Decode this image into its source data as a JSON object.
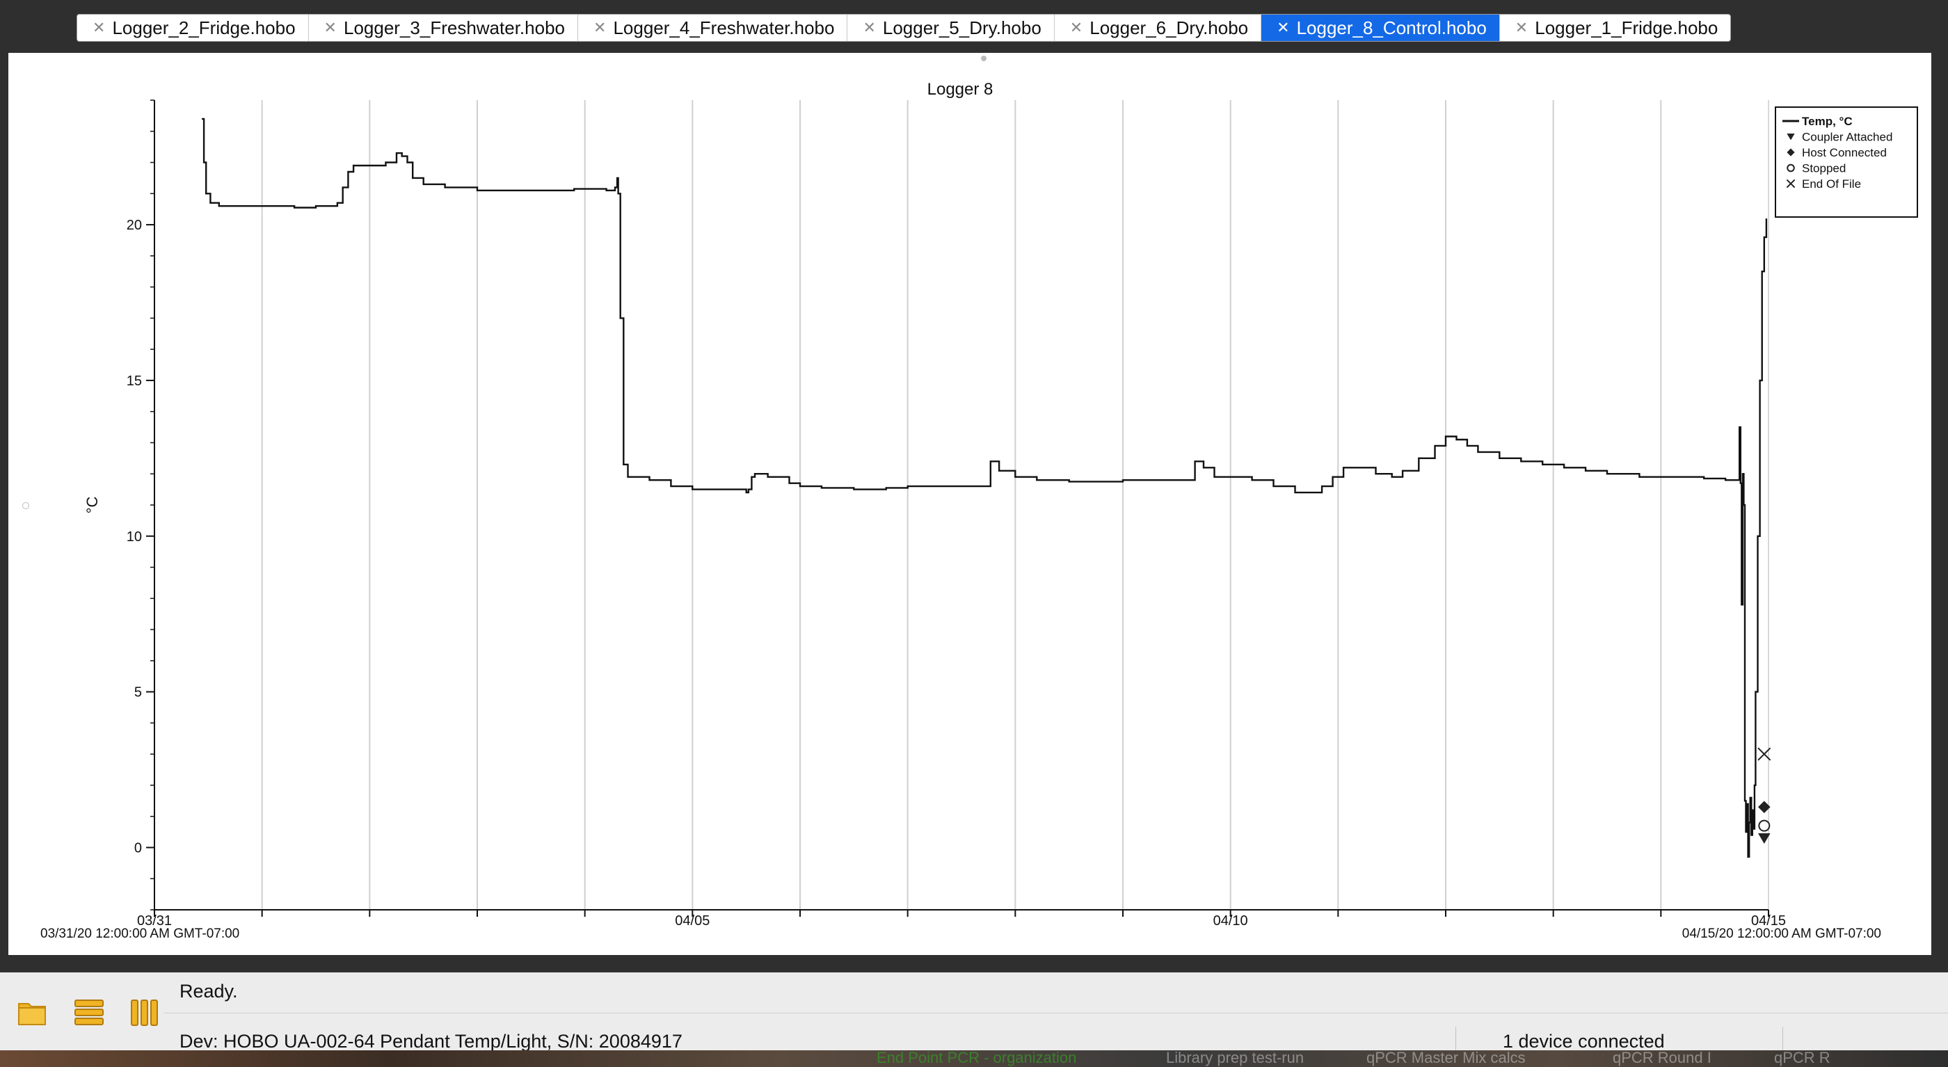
{
  "tabs": [
    {
      "label": "Logger_2_Fridge.hobo",
      "active": false
    },
    {
      "label": "Logger_3_Freshwater.hobo",
      "active": false
    },
    {
      "label": "Logger_4_Freshwater.hobo",
      "active": false
    },
    {
      "label": "Logger_5_Dry.hobo",
      "active": false
    },
    {
      "label": "Logger_6_Dry.hobo",
      "active": false
    },
    {
      "label": "Logger_8_Control.hobo",
      "active": true
    },
    {
      "label": "Logger_1_Fridge.hobo",
      "active": false
    }
  ],
  "chart_data": {
    "type": "line",
    "title": "Logger 8",
    "ylabel": "°C",
    "xlabel": "",
    "x_unit": "days since 03/31/20 00:00",
    "xlim": [
      0,
      15
    ],
    "ylim": [
      -2,
      24
    ],
    "x_ticks": [
      {
        "x": 0,
        "label": "03/31"
      },
      {
        "x": 5,
        "label": "04/05"
      },
      {
        "x": 10,
        "label": "04/10"
      },
      {
        "x": 15,
        "label": "04/15"
      }
    ],
    "x_range_start_label": "03/31/20 12:00:00 AM GMT-07:00",
    "x_range_end_label": "04/15/20 12:00:00 AM GMT-07:00",
    "y_ticks": [
      0,
      5,
      10,
      15,
      20
    ],
    "grid": "vertical, daily",
    "legend_position": "top-right",
    "legend": [
      {
        "symbol": "line",
        "label": "Temp, °C"
      },
      {
        "symbol": "triangle-down",
        "label": "Coupler Attached"
      },
      {
        "symbol": "diamond",
        "label": "Host Connected"
      },
      {
        "symbol": "circle",
        "label": "Stopped"
      },
      {
        "symbol": "x",
        "label": "End Of File"
      }
    ],
    "series": [
      {
        "name": "Temp, °C",
        "points": [
          [
            0.44,
            23.4
          ],
          [
            0.46,
            22.0
          ],
          [
            0.48,
            21.0
          ],
          [
            0.52,
            20.7
          ],
          [
            0.6,
            20.6
          ],
          [
            0.8,
            20.6
          ],
          [
            1.0,
            20.6
          ],
          [
            1.2,
            20.6
          ],
          [
            1.3,
            20.55
          ],
          [
            1.5,
            20.6
          ],
          [
            1.7,
            20.7
          ],
          [
            1.75,
            21.2
          ],
          [
            1.8,
            21.7
          ],
          [
            1.85,
            21.9
          ],
          [
            2.0,
            21.9
          ],
          [
            2.15,
            22.0
          ],
          [
            2.25,
            22.3
          ],
          [
            2.3,
            22.2
          ],
          [
            2.35,
            22.0
          ],
          [
            2.4,
            21.5
          ],
          [
            2.5,
            21.3
          ],
          [
            2.7,
            21.2
          ],
          [
            2.9,
            21.2
          ],
          [
            3.0,
            21.1
          ],
          [
            3.3,
            21.1
          ],
          [
            3.6,
            21.1
          ],
          [
            3.9,
            21.15
          ],
          [
            4.2,
            21.1
          ],
          [
            4.28,
            21.2
          ],
          [
            4.3,
            21.5
          ],
          [
            4.31,
            21.0
          ],
          [
            4.33,
            17.0
          ],
          [
            4.36,
            12.3
          ],
          [
            4.4,
            11.9
          ],
          [
            4.6,
            11.8
          ],
          [
            4.8,
            11.6
          ],
          [
            5.0,
            11.5
          ],
          [
            5.4,
            11.5
          ],
          [
            5.5,
            11.4
          ],
          [
            5.52,
            11.5
          ],
          [
            5.55,
            11.9
          ],
          [
            5.58,
            12.0
          ],
          [
            5.7,
            11.9
          ],
          [
            5.9,
            11.7
          ],
          [
            6.0,
            11.6
          ],
          [
            6.2,
            11.55
          ],
          [
            6.5,
            11.5
          ],
          [
            6.8,
            11.55
          ],
          [
            7.0,
            11.6
          ],
          [
            7.3,
            11.6
          ],
          [
            7.5,
            11.6
          ],
          [
            7.75,
            11.6
          ],
          [
            7.77,
            12.4
          ],
          [
            7.85,
            12.1
          ],
          [
            8.0,
            11.9
          ],
          [
            8.2,
            11.8
          ],
          [
            8.5,
            11.75
          ],
          [
            8.8,
            11.75
          ],
          [
            9.0,
            11.8
          ],
          [
            9.2,
            11.8
          ],
          [
            9.5,
            11.8
          ],
          [
            9.65,
            11.8
          ],
          [
            9.67,
            12.4
          ],
          [
            9.75,
            12.2
          ],
          [
            9.85,
            11.9
          ],
          [
            10.0,
            11.9
          ],
          [
            10.2,
            11.8
          ],
          [
            10.4,
            11.6
          ],
          [
            10.6,
            11.4
          ],
          [
            10.75,
            11.4
          ],
          [
            10.85,
            11.6
          ],
          [
            10.95,
            11.9
          ],
          [
            11.05,
            12.2
          ],
          [
            11.2,
            12.2
          ],
          [
            11.35,
            12.0
          ],
          [
            11.5,
            11.9
          ],
          [
            11.6,
            12.1
          ],
          [
            11.75,
            12.5
          ],
          [
            11.9,
            12.9
          ],
          [
            12.0,
            13.2
          ],
          [
            12.1,
            13.1
          ],
          [
            12.2,
            12.9
          ],
          [
            12.3,
            12.7
          ],
          [
            12.5,
            12.5
          ],
          [
            12.7,
            12.4
          ],
          [
            12.9,
            12.3
          ],
          [
            13.1,
            12.2
          ],
          [
            13.3,
            12.1
          ],
          [
            13.5,
            12.0
          ],
          [
            13.8,
            11.9
          ],
          [
            14.1,
            11.9
          ],
          [
            14.4,
            11.85
          ],
          [
            14.6,
            11.8
          ],
          [
            14.72,
            11.8
          ],
          [
            14.73,
            13.5
          ],
          [
            14.74,
            11.7
          ],
          [
            14.75,
            7.8
          ],
          [
            14.76,
            12.0
          ],
          [
            14.77,
            11.0
          ],
          [
            14.78,
            1.5
          ],
          [
            14.79,
            0.5
          ],
          [
            14.8,
            1.4
          ],
          [
            14.81,
            -0.3
          ],
          [
            14.82,
            0.8
          ],
          [
            14.83,
            1.6
          ],
          [
            14.84,
            0.4
          ],
          [
            14.85,
            1.2
          ],
          [
            14.86,
            0.6
          ],
          [
            14.87,
            2.0
          ],
          [
            14.88,
            5.0
          ],
          [
            14.9,
            10.0
          ],
          [
            14.92,
            15.0
          ],
          [
            14.94,
            18.5
          ],
          [
            14.96,
            19.6
          ],
          [
            14.98,
            20.2
          ]
        ]
      }
    ],
    "events": [
      {
        "name": "Coupler Attached",
        "x": 14.96,
        "y": 0.3
      },
      {
        "name": "Host Connected",
        "x": 14.96,
        "y": 1.3
      },
      {
        "name": "Stopped",
        "x": 14.96,
        "y": 0.7
      },
      {
        "name": "End Of File",
        "x": 14.96,
        "y": 3.0
      }
    ]
  },
  "status": {
    "message": "Ready.",
    "device": "Dev: HOBO UA-002-64 Pendant Temp/Light, S/N: 20084917",
    "connection": "1 device connected"
  },
  "toolbar": {
    "icons": [
      "folder-icon",
      "list-view-icon",
      "column-view-icon"
    ]
  },
  "dock_items": [
    "End Point PCR - organization",
    "Library prep test-run",
    "qPCR Master Mix calcs",
    "qPCR Round I",
    "qPCR R"
  ]
}
